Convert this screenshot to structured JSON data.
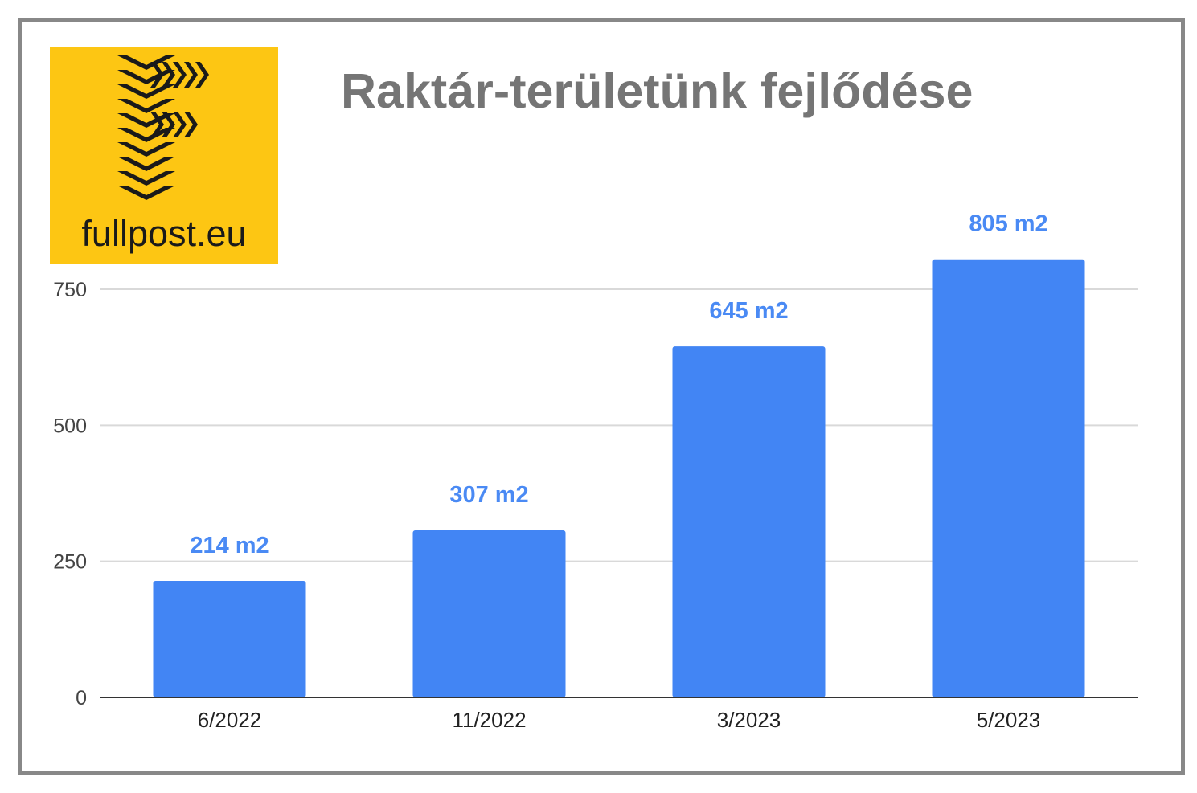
{
  "logo": {
    "brand_text": "fullpost.eu",
    "background": "#fdc613"
  },
  "colors": {
    "bar": "#4285f4",
    "data_label": "#4a8af4",
    "title": "#757575",
    "grid": "#d9d9d9",
    "axis_text": "#444444"
  },
  "chart_data": {
    "type": "bar",
    "title": "Raktár-területünk fejlődése",
    "categories": [
      "6/2022",
      "11/2022",
      "3/2023",
      "5/2023"
    ],
    "values": [
      214,
      307,
      645,
      805
    ],
    "data_labels": [
      "214 m2",
      "307 m2",
      "645 m2",
      "805 m2"
    ],
    "yticks": [
      0,
      250,
      500,
      750
    ],
    "ylim": [
      0,
      850
    ],
    "grid": true,
    "legend": "none"
  }
}
